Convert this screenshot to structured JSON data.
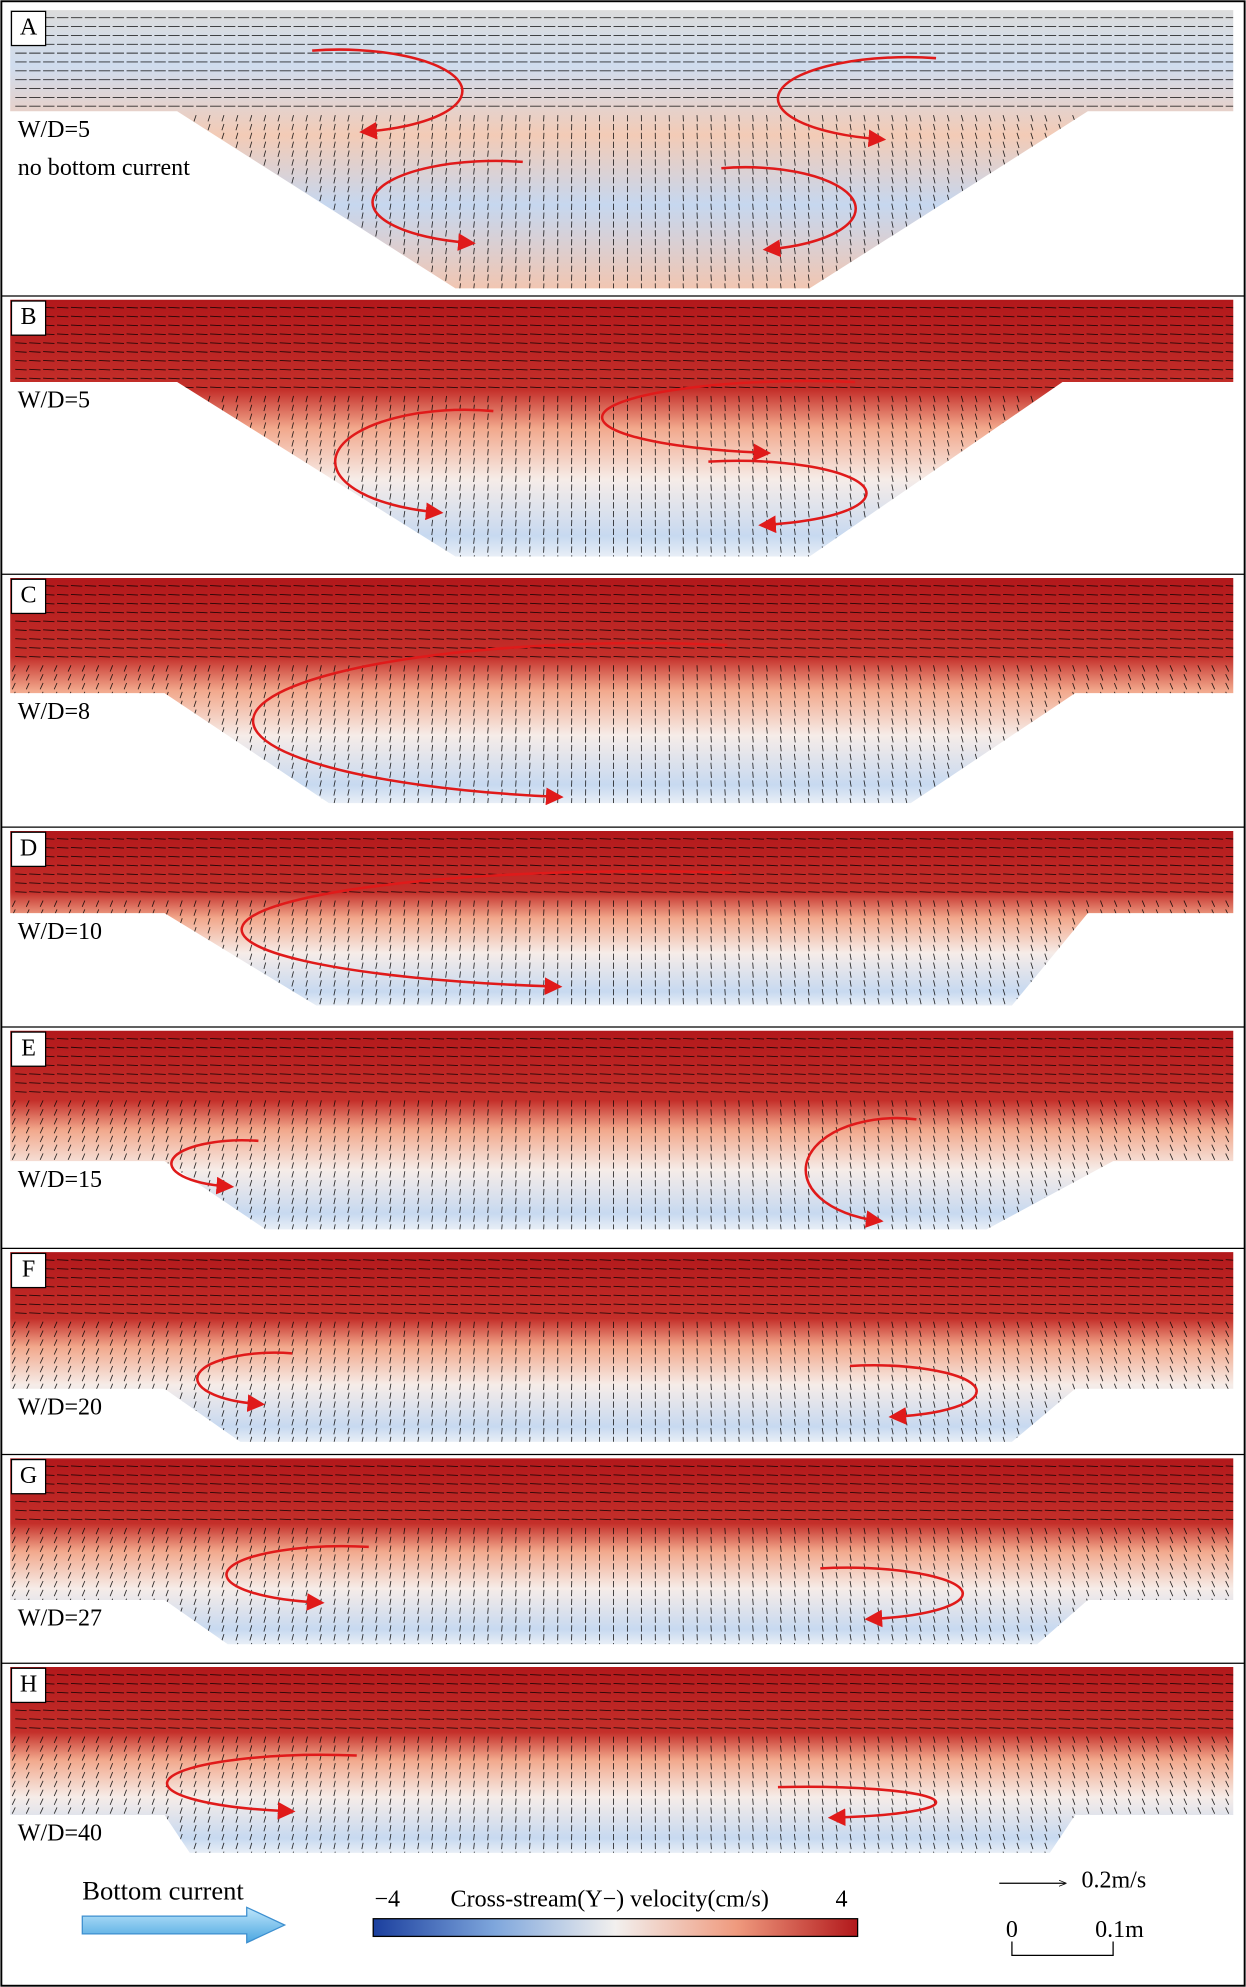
{
  "panels": [
    {
      "label": "A",
      "annotation": "W/D=5",
      "note": "no bottom current"
    },
    {
      "label": "B",
      "annotation": "W/D=5"
    },
    {
      "label": "C",
      "annotation": "W/D=8"
    },
    {
      "label": "D",
      "annotation": "W/D=10"
    },
    {
      "label": "E",
      "annotation": "W/D=15"
    },
    {
      "label": "F",
      "annotation": "W/D=20"
    },
    {
      "label": "G",
      "annotation": "W/D=27"
    },
    {
      "label": "H",
      "annotation": "W/D=40"
    }
  ],
  "legend": {
    "bottom_current": "Bottom current",
    "colorbar": {
      "min_label": "−4",
      "title": "Cross-stream(Y−) velocity(cm/s)",
      "max_label": "4"
    },
    "scale": {
      "velocity": "0.2m/s",
      "length_start": "0",
      "length_end": "0.1m"
    }
  }
}
